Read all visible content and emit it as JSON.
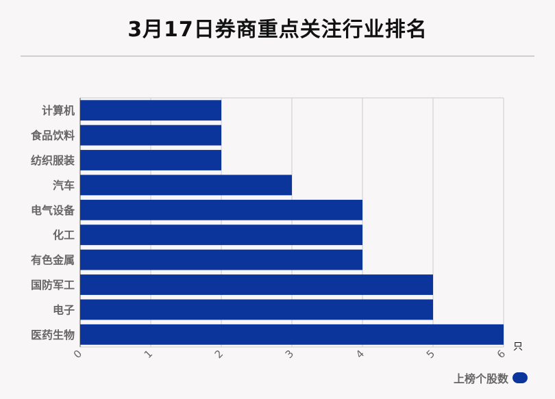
{
  "title": "3月17日券商重点关注行业排名",
  "colors": {
    "bar": "#0c359b",
    "grid": "#cccccc",
    "axis_text": "#666666"
  },
  "chart_data": {
    "type": "bar",
    "orientation": "horizontal",
    "categories": [
      "计算机",
      "食品饮料",
      "纺织服装",
      "汽车",
      "电气设备",
      "化工",
      "有色金属",
      "国防军工",
      "电子",
      "医药生物"
    ],
    "series": [
      {
        "name": "上榜个股数",
        "values": [
          2,
          2,
          2,
          3,
          4,
          4,
          4,
          5,
          5,
          6
        ]
      }
    ],
    "xlim": [
      0,
      6
    ],
    "xticks": [
      "0",
      "1",
      "2",
      "3",
      "4",
      "5",
      "6"
    ],
    "x_unit": "只",
    "grid": true,
    "legend_position": "bottom-right"
  }
}
